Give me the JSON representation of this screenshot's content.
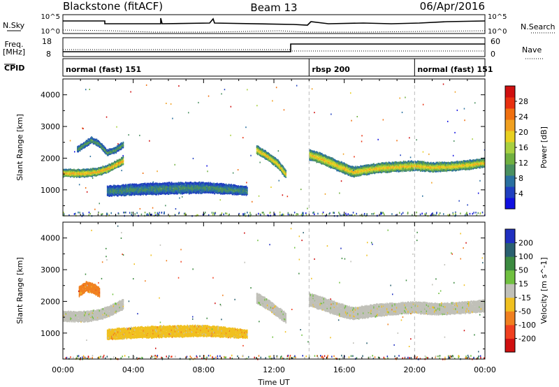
{
  "header": {
    "station": "Blackstone (fitACF)",
    "beam": "Beam 13",
    "date": "06/Apr/2016"
  },
  "side_labels": {
    "nsky": "N.Sky",
    "nsearch": "N.Search",
    "freq_line1": "Freq.",
    "freq_line2": "[MHz]",
    "nave": "Nave",
    "cpid": "CPID"
  },
  "top_panels": {
    "nsky_ticks": [
      "10^5",
      "10^0"
    ],
    "nsearch_ticks": [
      "10^5",
      "10^0"
    ],
    "freq_ticks": [
      "18",
      "8"
    ],
    "nave_ticks": [
      "60",
      "0"
    ]
  },
  "cpid_segments": [
    {
      "label": "normal (fast) 151",
      "start_h": 0,
      "end_h": 14
    },
    {
      "label": "rbsp 200",
      "start_h": 14,
      "end_h": 20
    },
    {
      "label": "normal (fast) 151",
      "start_h": 20,
      "end_h": 24
    }
  ],
  "chart_data": [
    {
      "type": "heatmap",
      "title": "",
      "xlabel": "Time UT",
      "ylabel": "Slant Range [km]",
      "x_ticks": [
        "00:00",
        "04:00",
        "08:00",
        "12:00",
        "16:00",
        "20:00",
        "00:00"
      ],
      "y_ticks": [
        "1000",
        "2000",
        "3000",
        "4000"
      ],
      "xlim_hours": [
        0,
        24
      ],
      "ylim_km": [
        180,
        4500
      ],
      "colorbar": {
        "label": "Power [dB]",
        "ticks": [
          "4",
          "8",
          "12",
          "16",
          "20",
          "24",
          "28"
        ],
        "range": [
          0,
          32
        ],
        "colors": [
          "#1010e0",
          "#2040c0",
          "#2a70a0",
          "#4a9060",
          "#70b040",
          "#a8d040",
          "#e8d020",
          "#f0a020",
          "#f07010",
          "#e83010",
          "#d01010"
        ]
      },
      "bands": [
        {
          "name": "morning-band",
          "t": [
            0.0,
            0.5,
            1.0,
            1.5,
            2.0,
            2.5,
            3.0,
            3.4
          ],
          "center_km": [
            1520,
            1510,
            1500,
            1520,
            1560,
            1650,
            1780,
            1900
          ],
          "width_km": [
            240,
            240,
            240,
            240,
            240,
            240,
            240,
            240
          ],
          "power_db": 24
        },
        {
          "name": "upper-band",
          "t": [
            0.8,
            1.2,
            1.6,
            2.0,
            2.5,
            3.0,
            3.4
          ],
          "center_km": [
            2250,
            2400,
            2550,
            2450,
            2150,
            2250,
            2400
          ],
          "width_km": [
            180,
            180,
            180,
            180,
            180,
            180,
            180
          ],
          "power_db": 12
        },
        {
          "name": "midday-band",
          "t": [
            2.5,
            4.0,
            6.0,
            8.0,
            9.5,
            10.5
          ],
          "center_km": [
            950,
            1000,
            1040,
            1060,
            1000,
            950
          ],
          "width_km": [
            320,
            340,
            360,
            340,
            300,
            260
          ],
          "power_db": 10
        },
        {
          "name": "afternoon-band",
          "t": [
            11.0,
            11.6,
            12.2,
            12.7
          ],
          "center_km": [
            2250,
            2050,
            1800,
            1450
          ],
          "width_km": [
            250,
            250,
            250,
            250
          ],
          "power_db": 22
        },
        {
          "name": "night-band",
          "t": [
            14.0,
            14.8,
            15.6,
            16.5,
            17.0,
            18.0,
            19.0,
            20.0,
            21.0,
            22.0,
            23.0,
            24.0
          ],
          "center_km": [
            2100,
            1950,
            1750,
            1550,
            1600,
            1680,
            1720,
            1750,
            1700,
            1720,
            1770,
            1850
          ],
          "width_km": [
            320,
            320,
            320,
            320,
            300,
            300,
            300,
            300,
            280,
            280,
            280,
            280
          ],
          "power_db": 22
        }
      ]
    },
    {
      "type": "heatmap",
      "title": "",
      "xlabel": "Time UT",
      "ylabel": "Slant Range [km]",
      "x_ticks": [
        "00:00",
        "04:00",
        "08:00",
        "12:00",
        "16:00",
        "20:00",
        "00:00"
      ],
      "y_ticks": [
        "1000",
        "2000",
        "3000",
        "4000"
      ],
      "xlim_hours": [
        0,
        24
      ],
      "ylim_km": [
        180,
        4500
      ],
      "colorbar": {
        "label": "Velocity [m s^-1]",
        "ticks": [
          "200",
          "100",
          "50",
          "15",
          "-15",
          "-50",
          "-100",
          "-200"
        ],
        "colors": [
          "#2030c0",
          "#2a6070",
          "#3c8a40",
          "#70c040",
          "#c0c0b8",
          "#f0c020",
          "#f08020",
          "#f04020",
          "#d01010"
        ]
      },
      "bands": [
        {
          "name": "morning-band",
          "t": [
            0.0,
            0.5,
            1.0,
            1.5,
            2.0,
            2.5,
            3.0,
            3.4
          ],
          "center_km": [
            1520,
            1510,
            1500,
            1520,
            1560,
            1650,
            1780,
            1900
          ],
          "width_km": [
            320,
            320,
            320,
            320,
            320,
            320,
            320,
            320
          ],
          "velocity_class": "-15..15"
        },
        {
          "name": "orange-patch",
          "t": [
            0.9,
            1.3,
            1.7,
            2.1
          ],
          "center_km": [
            2300,
            2450,
            2400,
            2250
          ],
          "width_km": [
            300,
            300,
            300,
            300
          ],
          "velocity_class": "-100..-50"
        },
        {
          "name": "midday-band",
          "t": [
            2.5,
            4.0,
            6.0,
            8.0,
            9.5,
            10.5
          ],
          "center_km": [
            950,
            1000,
            1040,
            1060,
            1000,
            950
          ],
          "width_km": [
            320,
            340,
            360,
            340,
            300,
            260
          ],
          "velocity_class": "-50..-15"
        },
        {
          "name": "afternoon-band",
          "t": [
            11.0,
            11.6,
            12.2,
            12.7
          ],
          "center_km": [
            2100,
            1900,
            1650,
            1450
          ],
          "width_km": [
            320,
            320,
            320,
            320
          ],
          "velocity_class": "-15..15"
        },
        {
          "name": "night-band",
          "t": [
            14.0,
            14.8,
            15.6,
            16.5,
            17.0,
            18.0,
            19.0,
            20.0,
            21.0,
            22.0,
            23.0,
            24.0
          ],
          "center_km": [
            2050,
            1900,
            1750,
            1600,
            1650,
            1720,
            1760,
            1800,
            1750,
            1760,
            1800,
            1850
          ],
          "width_km": [
            400,
            400,
            400,
            380,
            380,
            380,
            360,
            360,
            360,
            360,
            360,
            360
          ],
          "velocity_class": "-15..15"
        }
      ]
    }
  ]
}
